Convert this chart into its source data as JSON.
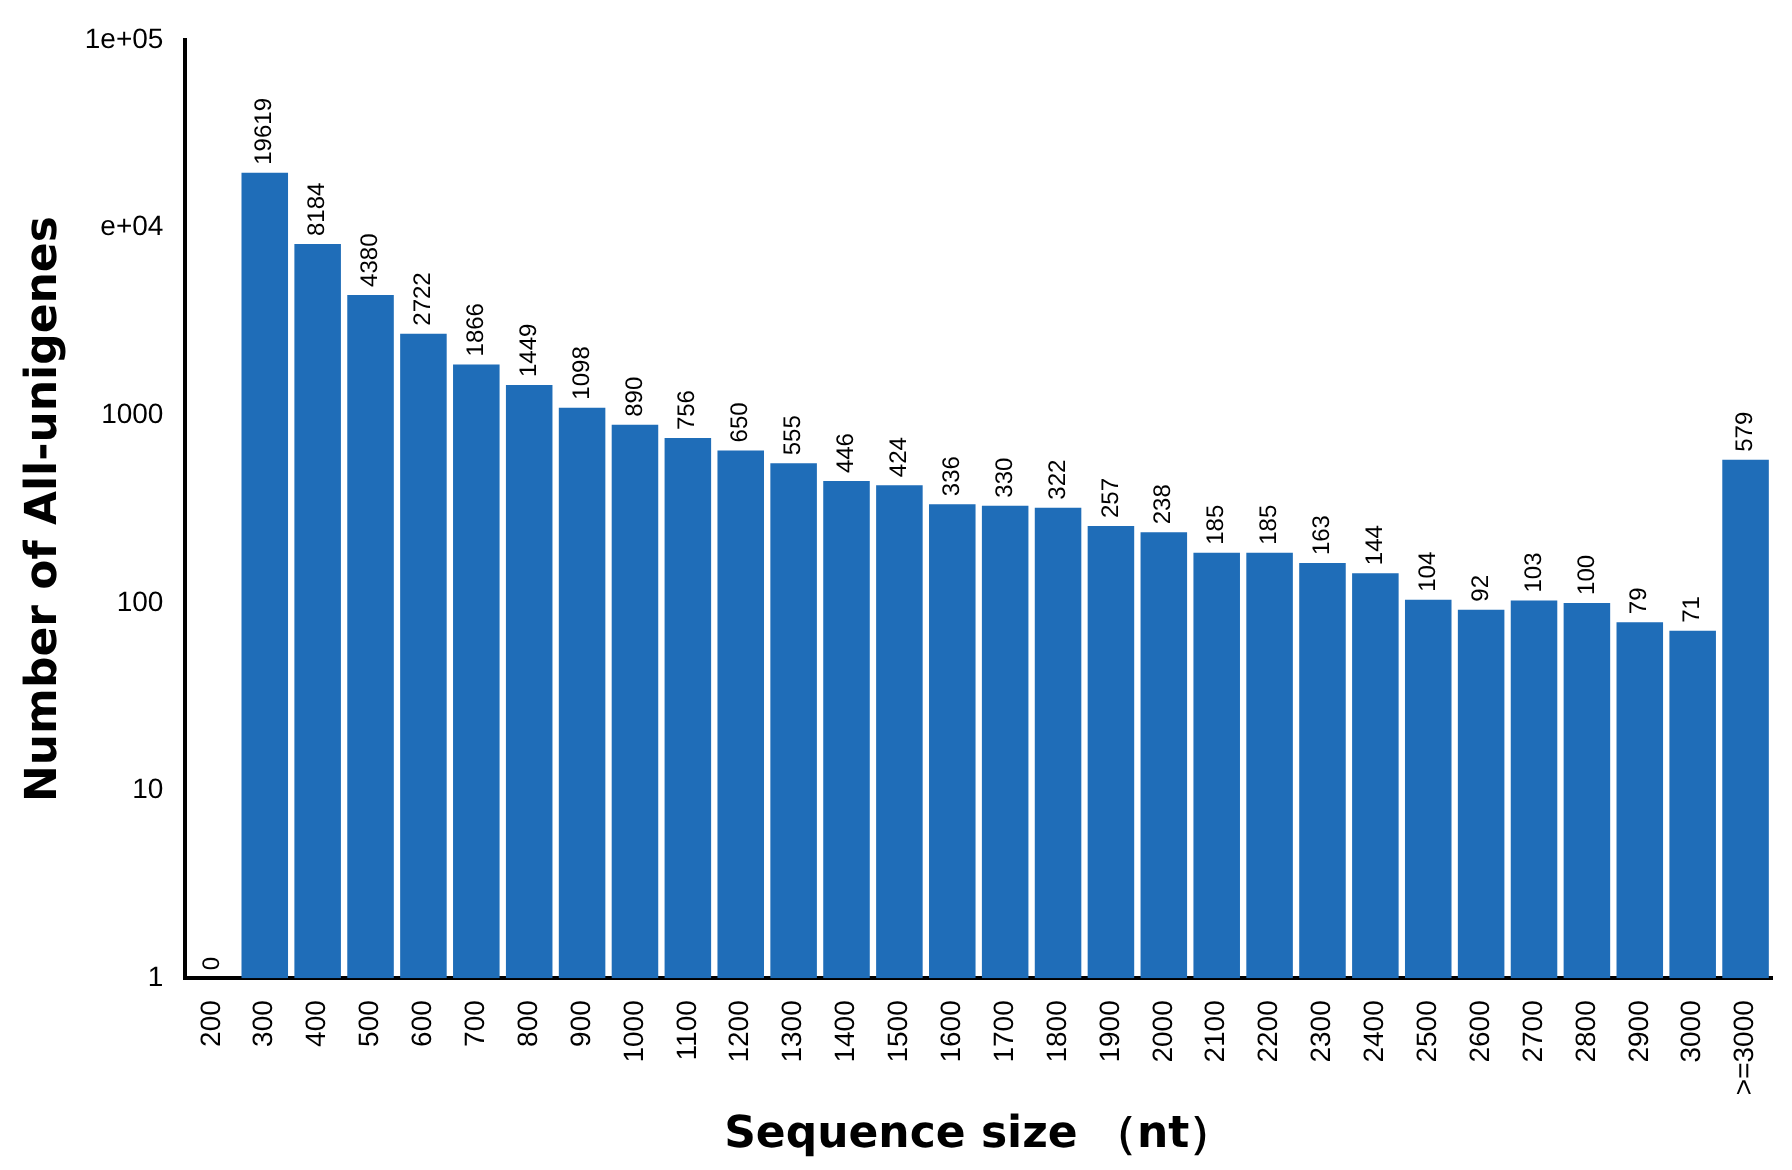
{
  "chart_data": {
    "type": "bar",
    "xlabel": "Sequence size （nt）",
    "ylabel": "Number of All-unigenes",
    "categories": [
      "200",
      "300",
      "400",
      "500",
      "600",
      "700",
      "800",
      "900",
      "1000",
      "1100",
      "1200",
      "1300",
      "1400",
      "1500",
      "1600",
      "1700",
      "1800",
      "1900",
      "2000",
      "2100",
      "2200",
      "2300",
      "2400",
      "2500",
      "2600",
      "2700",
      "2800",
      "2900",
      "3000",
      ">=3000"
    ],
    "values": [
      null,
      19619,
      8184,
      4380,
      2722,
      1866,
      1449,
      1098,
      890,
      756,
      650,
      555,
      446,
      424,
      336,
      330,
      322,
      257,
      238,
      185,
      185,
      163,
      144,
      104,
      92,
      103,
      100,
      79,
      71,
      579
    ],
    "color": "#1f6db8",
    "log": "y",
    "ylim": [
      1,
      100000
    ],
    "yticks": [
      1,
      10,
      100,
      1000,
      {
        "value": 10000,
        "label": "e+04"
      },
      {
        "value": 100000,
        "label": "1e+05"
      }
    ],
    "value_labels": [
      "0",
      "19619",
      "8184",
      "4380",
      "2722",
      "1866",
      "1449",
      "1098",
      "890",
      "756",
      "650",
      "555",
      "446",
      "424",
      "336",
      "330",
      "322",
      "257",
      "238",
      "185",
      "185",
      "163",
      "144",
      "104",
      "92",
      "103",
      "100",
      "79",
      "71",
      "579"
    ],
    "grid": false,
    "legend": false
  }
}
